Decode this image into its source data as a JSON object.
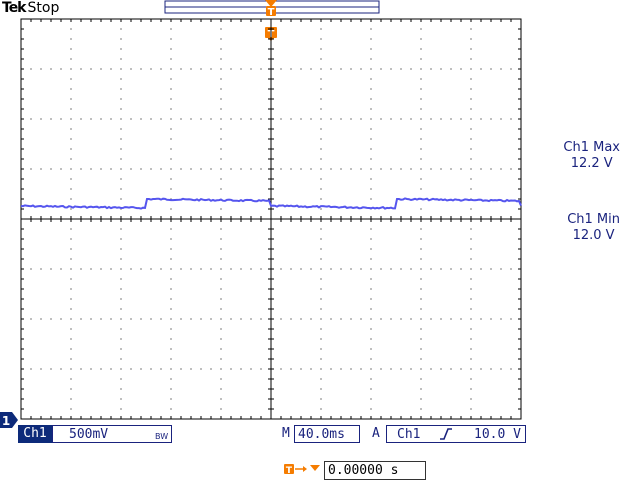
{
  "header": {
    "brand": "Tek",
    "acquisition_state": "Stop"
  },
  "markers": {
    "trigger_position_glyph": "T",
    "channel_ground_glyph": "1"
  },
  "measurements": [
    {
      "label": "Ch1 Max",
      "value": "12.2 V"
    },
    {
      "label": "Ch1 Min",
      "value": "12.0 V"
    }
  ],
  "status": {
    "channel": "Ch1",
    "volts_per_div": "500mV",
    "bw_limit": "BW",
    "timebase_prefix": "M",
    "time_per_div": "40.0ms",
    "acquire_mode": "A",
    "trigger_source": "Ch1",
    "trigger_slope_icon": "rising-edge-icon",
    "trigger_level": "10.0 V"
  },
  "trigger_position": {
    "icon": "trigger-to-center-icon",
    "value": "0.00000 s"
  },
  "colors": {
    "trace": "#5555ee",
    "accent_orange": "#f57c00",
    "graticule": "#000000",
    "text_blue": "#1a237e",
    "badge_bg": "#0d2a7a"
  }
}
